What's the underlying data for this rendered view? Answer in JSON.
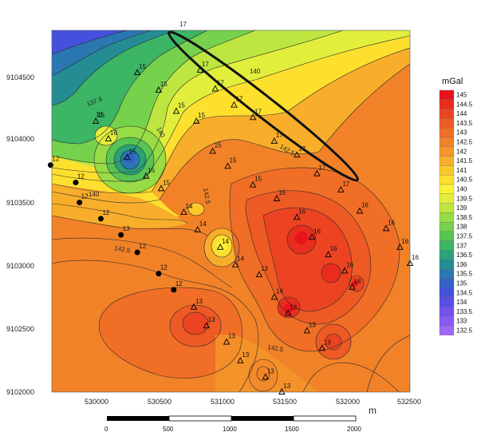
{
  "legend": {
    "title": "mGal",
    "levels": [
      "145",
      "144.5",
      "144",
      "143.5",
      "143",
      "142.5",
      "142",
      "141.5",
      "141",
      "140.5",
      "140",
      "139.5",
      "139",
      "138.5",
      "138",
      "137.5",
      "137",
      "136.5",
      "136",
      "135.5",
      "135",
      "134.5",
      "134",
      "133.5",
      "133",
      "132.5"
    ],
    "colors": [
      "#e8131b",
      "#ea2c1e",
      "#ec4322",
      "#ee5a24",
      "#f06e26",
      "#f28228",
      "#f4962a",
      "#f8ae2b",
      "#fbc82b",
      "#fde02e",
      "#fdf23a",
      "#e2ee3c",
      "#bde640",
      "#98dc45",
      "#76d14c",
      "#57c454",
      "#3cb565",
      "#2aa37a",
      "#238d93",
      "#2a77b2",
      "#3261cb",
      "#4451dd",
      "#5a4ee8",
      "#7352ef",
      "#8a5bf2",
      "#a066f5"
    ]
  },
  "x_axis": {
    "ticks": [
      "530000",
      "530500",
      "531000",
      "531500",
      "532000",
      "532500"
    ],
    "unit": "m"
  },
  "y_axis": {
    "ticks": [
      "9104500",
      "9104000",
      "9103500",
      "9103000",
      "9102500",
      "9102000"
    ]
  },
  "scale_bar": {
    "labels": [
      "0",
      "500",
      "1000",
      "1500",
      "2000"
    ],
    "unit": "m"
  },
  "contour_labels": [
    "17",
    "140",
    "137.5",
    "15",
    "140",
    "142.5",
    "142.5",
    "140",
    "142.5",
    "142.5"
  ],
  "stations": [
    {
      "label": "17",
      "x": 530830,
      "y": 9104580,
      "shape": "triangle"
    },
    {
      "label": "17",
      "x": 530950,
      "y": 9104430,
      "shape": "triangle"
    },
    {
      "label": "17",
      "x": 531100,
      "y": 9104300,
      "shape": "triangle"
    },
    {
      "label": "17",
      "x": 531250,
      "y": 9104200,
      "shape": "triangle"
    },
    {
      "label": "17",
      "x": 531420,
      "y": 9104010,
      "shape": "triangle"
    },
    {
      "label": "17",
      "x": 531600,
      "y": 9103900,
      "shape": "triangle"
    },
    {
      "label": "17",
      "x": 531760,
      "y": 9103750,
      "shape": "triangle"
    },
    {
      "label": "17",
      "x": 531950,
      "y": 9103620,
      "shape": "triangle"
    },
    {
      "label": "15",
      "x": 530330,
      "y": 9104560,
      "shape": "triangle"
    },
    {
      "label": "15",
      "x": 530500,
      "y": 9104420,
      "shape": "triangle"
    },
    {
      "label": "15",
      "x": 530000,
      "y": 9104170,
      "shape": "triangle"
    },
    {
      "label": "15",
      "x": 530640,
      "y": 9104250,
      "shape": "triangle"
    },
    {
      "label": "15",
      "x": 530800,
      "y": 9104170,
      "shape": "triangle"
    },
    {
      "label": "15",
      "x": 530930,
      "y": 9103930,
      "shape": "triangle"
    },
    {
      "label": "15",
      "x": 531050,
      "y": 9103810,
      "shape": "triangle"
    },
    {
      "label": "15",
      "x": 531250,
      "y": 9103660,
      "shape": "triangle"
    },
    {
      "label": "15",
      "x": 531440,
      "y": 9103550,
      "shape": "triangle"
    },
    {
      "label": "16",
      "x": 531600,
      "y": 9103400,
      "shape": "triangle"
    },
    {
      "label": "16",
      "x": 531720,
      "y": 9103240,
      "shape": "triangle"
    },
    {
      "label": "16",
      "x": 531850,
      "y": 9103100,
      "shape": "triangle"
    },
    {
      "label": "16",
      "x": 532100,
      "y": 9103450,
      "shape": "triangle"
    },
    {
      "label": "16",
      "x": 532310,
      "y": 9103310,
      "shape": "triangle"
    },
    {
      "label": "16",
      "x": 532420,
      "y": 9103160,
      "shape": "triangle"
    },
    {
      "label": "16",
      "x": 532500,
      "y": 9103030,
      "shape": "triangle"
    },
    {
      "label": "16",
      "x": 531980,
      "y": 9102970,
      "shape": "triangle"
    },
    {
      "label": "16",
      "x": 532040,
      "y": 9102840,
      "shape": "triangle"
    },
    {
      "label": "16",
      "x": 530100,
      "y": 9104030,
      "shape": "triangle"
    },
    {
      "label": "15",
      "x": 530250,
      "y": 9103880,
      "shape": "triangle"
    },
    {
      "label": "15",
      "x": 530400,
      "y": 9103730,
      "shape": "triangle"
    },
    {
      "label": "15",
      "x": 530520,
      "y": 9103630,
      "shape": "triangle"
    },
    {
      "label": "14",
      "x": 530700,
      "y": 9103440,
      "shape": "triangle"
    },
    {
      "label": "14",
      "x": 530810,
      "y": 9103300,
      "shape": "triangle"
    },
    {
      "label": "14",
      "x": 530990,
      "y": 9103160,
      "shape": "triangle"
    },
    {
      "label": "14",
      "x": 531110,
      "y": 9103020,
      "shape": "triangle"
    },
    {
      "label": "13",
      "x": 531300,
      "y": 9102940,
      "shape": "triangle"
    },
    {
      "label": "14",
      "x": 531420,
      "y": 9102760,
      "shape": "triangle"
    },
    {
      "label": "13",
      "x": 531530,
      "y": 9102630,
      "shape": "triangle"
    },
    {
      "label": "13",
      "x": 530780,
      "y": 9102680,
      "shape": "triangle"
    },
    {
      "label": "13",
      "x": 530880,
      "y": 9102530,
      "shape": "triangle"
    },
    {
      "label": "13",
      "x": 531040,
      "y": 9102400,
      "shape": "triangle"
    },
    {
      "label": "13",
      "x": 531150,
      "y": 9102250,
      "shape": "triangle"
    },
    {
      "label": "13",
      "x": 531350,
      "y": 9102120,
      "shape": "triangle"
    },
    {
      "label": "13",
      "x": 531680,
      "y": 9102490,
      "shape": "triangle"
    },
    {
      "label": "13",
      "x": 531800,
      "y": 9102350,
      "shape": "triangle"
    },
    {
      "label": "13",
      "x": 531480,
      "y": 9102000,
      "shape": "triangle"
    },
    {
      "label": "12",
      "x": 529640,
      "y": 9103820,
      "shape": "dot"
    },
    {
      "label": "12",
      "x": 529840,
      "y": 9103680,
      "shape": "dot"
    },
    {
      "label": "12",
      "x": 529870,
      "y": 9103520,
      "shape": "dot"
    },
    {
      "label": "12",
      "x": 530040,
      "y": 9103390,
      "shape": "dot"
    },
    {
      "label": "13",
      "x": 530200,
      "y": 9103260,
      "shape": "dot"
    },
    {
      "label": "12",
      "x": 530330,
      "y": 9103120,
      "shape": "dot"
    },
    {
      "label": "12",
      "x": 530500,
      "y": 9102950,
      "shape": "dot"
    },
    {
      "label": "12",
      "x": 530620,
      "y": 9102820,
      "shape": "dot"
    }
  ]
}
